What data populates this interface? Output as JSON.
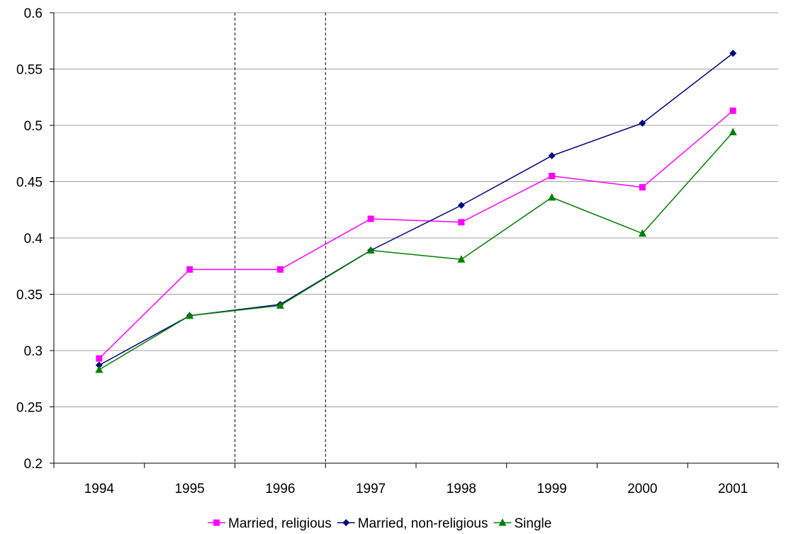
{
  "chart_data": {
    "type": "line",
    "title": "",
    "xlabel": "",
    "ylabel": "",
    "categories": [
      "1994",
      "1995",
      "1996",
      "1997",
      "1998",
      "1999",
      "2000",
      "2001"
    ],
    "ylim": [
      0.2,
      0.6
    ],
    "yticks": [
      "0.2",
      "0.25",
      "0.3",
      "0.35",
      "0.4",
      "0.45",
      "0.5",
      "0.55",
      "0.6"
    ],
    "grid": "horizontal",
    "reference_lines": [
      "between 1995 and 1996",
      "between 1996 and 1997"
    ],
    "legend_position": "bottom",
    "series": [
      {
        "name": "Married, religious",
        "color": "#ff00ff",
        "marker": "square",
        "values": [
          0.293,
          0.372,
          0.372,
          0.417,
          0.414,
          0.455,
          0.445,
          0.513
        ]
      },
      {
        "name": "Married, non-religious",
        "color": "#000080",
        "marker": "diamond",
        "values": [
          0.287,
          0.331,
          0.341,
          0.389,
          0.429,
          0.473,
          0.502,
          0.564
        ]
      },
      {
        "name": "Single",
        "color": "#008000",
        "marker": "triangle",
        "values": [
          0.283,
          0.331,
          0.34,
          0.389,
          0.381,
          0.436,
          0.404,
          0.494
        ]
      }
    ]
  }
}
